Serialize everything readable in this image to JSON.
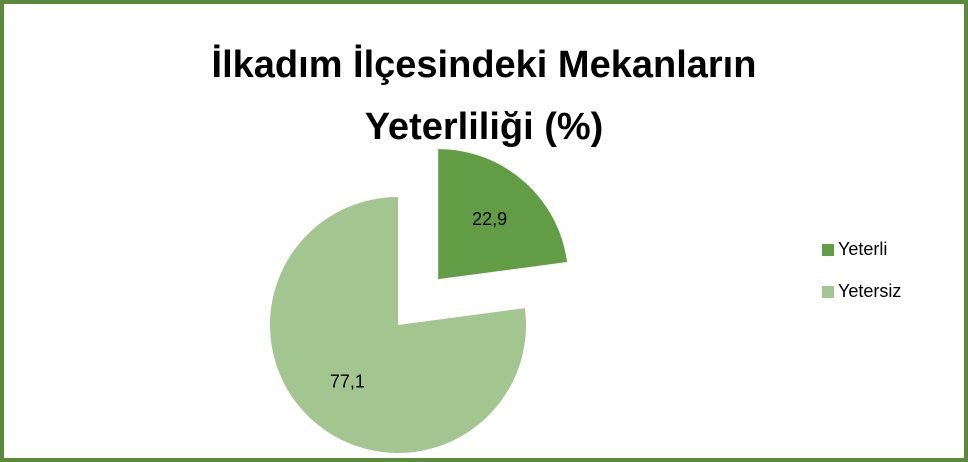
{
  "chart_data": {
    "type": "pie",
    "title": "İlkadım İlçesindeki Mekanların Yeterliliği (%)",
    "categories": [
      "Yeterli",
      "Yetersiz"
    ],
    "values": [
      22.9,
      77.1
    ],
    "value_labels": [
      "22,9",
      "77,1"
    ],
    "colors": [
      "#629c44",
      "#a3c590"
    ],
    "legend": "right"
  }
}
